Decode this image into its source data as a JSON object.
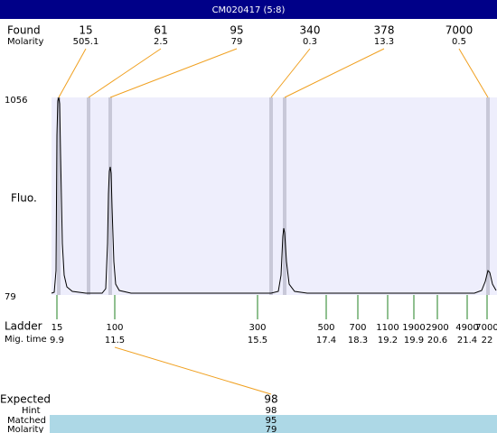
{
  "header": {
    "title": "CM020417 (5:8)"
  },
  "found": {
    "label": "Found",
    "molarity_label": "Molarity",
    "peaks": [
      {
        "size": "15",
        "molarity": "505.1"
      },
      {
        "size": "61",
        "molarity": "2.5"
      },
      {
        "size": "95",
        "molarity": "79"
      },
      {
        "size": "340",
        "molarity": "0.3"
      },
      {
        "size": "378",
        "molarity": "13.3"
      },
      {
        "size": "7000",
        "molarity": "0.5"
      }
    ]
  },
  "axis": {
    "top": "1056",
    "bottom": "79",
    "label": "Fluo."
  },
  "ladder": {
    "label": "Ladder",
    "time_label": "Mig. time",
    "entries": [
      {
        "size": "15",
        "time": "9.9"
      },
      {
        "size": "100",
        "time": "11.5"
      },
      {
        "size": "300",
        "time": "15.5"
      },
      {
        "size": "500",
        "time": "17.4"
      },
      {
        "size": "700",
        "time": "18.3"
      },
      {
        "size": "1100",
        "time": "19.2"
      },
      {
        "size": "1900",
        "time": "19.9"
      },
      {
        "size": "2900",
        "time": "20.6"
      },
      {
        "size": "4900",
        "time": "21.4"
      },
      {
        "size": "7000",
        "time": "22"
      }
    ]
  },
  "expected": {
    "label": "Expected",
    "value": "98",
    "rows": [
      {
        "label": "Hint",
        "value": "98"
      },
      {
        "label": "Matched",
        "value": "95"
      },
      {
        "label": "Molarity",
        "value": "79"
      }
    ]
  }
}
